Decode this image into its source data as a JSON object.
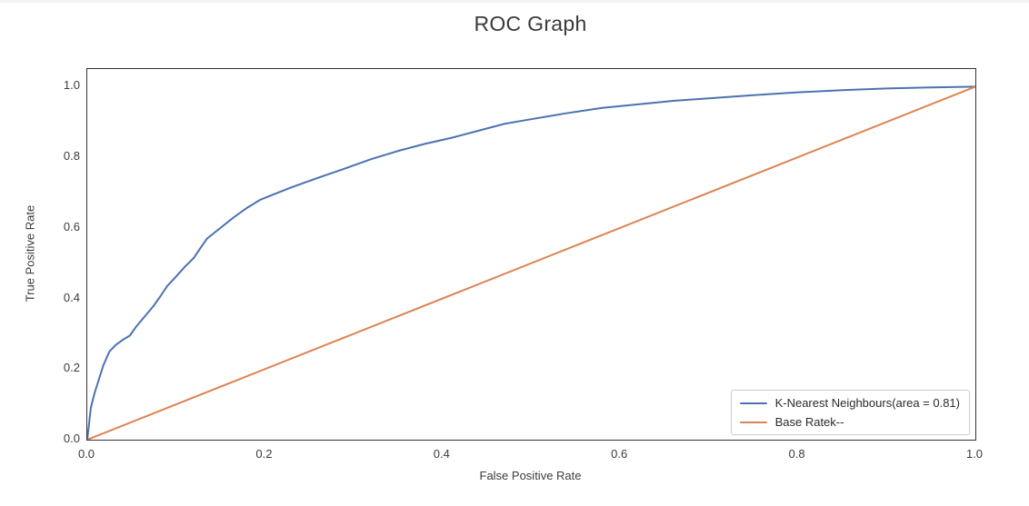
{
  "chart_data": {
    "type": "line",
    "title": "ROC Graph",
    "xlabel": "False Positive Rate",
    "ylabel": "True Positive Rate",
    "xlim": [
      0.0,
      1.0
    ],
    "ylim": [
      0.0,
      1.05
    ],
    "grid": false,
    "legend_position": "lower right",
    "auc": 0.81,
    "x_ticks": [
      "0.0",
      "0.2",
      "0.4",
      "0.6",
      "0.8",
      "1.0"
    ],
    "y_ticks": [
      "0.0",
      "0.2",
      "0.4",
      "0.6",
      "0.8",
      "1.0"
    ],
    "series": [
      {
        "name": "K-Nearest Neighbours(area = 0.81)",
        "color": "#4C72B0",
        "width": 2,
        "points": [
          [
            0.0,
            0.0
          ],
          [
            0.002,
            0.045
          ],
          [
            0.004,
            0.09
          ],
          [
            0.008,
            0.13
          ],
          [
            0.013,
            0.17
          ],
          [
            0.018,
            0.21
          ],
          [
            0.025,
            0.25
          ],
          [
            0.032,
            0.268
          ],
          [
            0.04,
            0.283
          ],
          [
            0.048,
            0.295
          ],
          [
            0.055,
            0.32
          ],
          [
            0.065,
            0.35
          ],
          [
            0.075,
            0.38
          ],
          [
            0.082,
            0.405
          ],
          [
            0.09,
            0.435
          ],
          [
            0.1,
            0.462
          ],
          [
            0.11,
            0.49
          ],
          [
            0.12,
            0.515
          ],
          [
            0.128,
            0.545
          ],
          [
            0.135,
            0.57
          ],
          [
            0.15,
            0.6
          ],
          [
            0.165,
            0.63
          ],
          [
            0.18,
            0.657
          ],
          [
            0.195,
            0.68
          ],
          [
            0.21,
            0.695
          ],
          [
            0.23,
            0.715
          ],
          [
            0.26,
            0.742
          ],
          [
            0.29,
            0.768
          ],
          [
            0.32,
            0.795
          ],
          [
            0.35,
            0.818
          ],
          [
            0.38,
            0.838
          ],
          [
            0.41,
            0.855
          ],
          [
            0.44,
            0.875
          ],
          [
            0.47,
            0.895
          ],
          [
            0.5,
            0.908
          ],
          [
            0.54,
            0.925
          ],
          [
            0.58,
            0.94
          ],
          [
            0.62,
            0.95
          ],
          [
            0.66,
            0.96
          ],
          [
            0.7,
            0.967
          ],
          [
            0.75,
            0.976
          ],
          [
            0.8,
            0.984
          ],
          [
            0.85,
            0.99
          ],
          [
            0.9,
            0.995
          ],
          [
            0.95,
            0.998
          ],
          [
            1.0,
            1.0
          ]
        ]
      },
      {
        "name": "Base Ratek--",
        "color": "#DD8452",
        "width": 2,
        "points": [
          [
            0.0,
            0.0
          ],
          [
            1.0,
            1.0
          ]
        ]
      }
    ]
  }
}
